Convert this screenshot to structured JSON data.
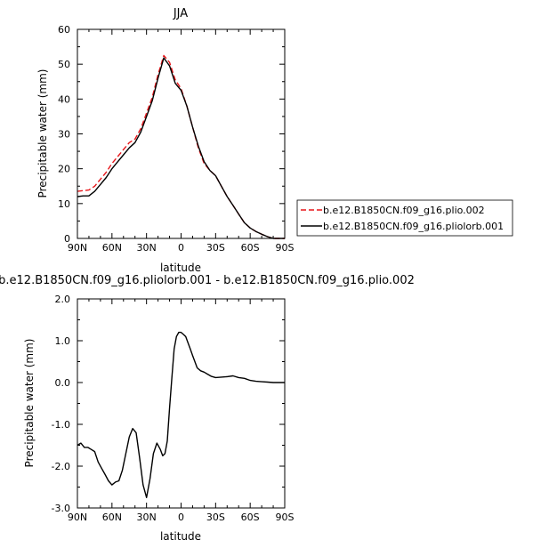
{
  "chart_data": [
    {
      "type": "line",
      "title": "JJA",
      "xlabel": "latitude",
      "ylabel": "Precipitable water (mm)",
      "xlim": [
        90,
        -90
      ],
      "ylim": [
        0,
        60
      ],
      "x_ticks": [
        90,
        60,
        30,
        0,
        -30,
        -60,
        -90
      ],
      "x_tick_labels": [
        "90N",
        "60N",
        "30N",
        "0",
        "30S",
        "60S",
        "90S"
      ],
      "y_ticks": [
        0,
        10,
        20,
        30,
        40,
        50,
        60
      ],
      "y_tick_labels": [
        "0",
        "10",
        "20",
        "30",
        "40",
        "50",
        "60"
      ],
      "legend_position": "right, outside plot",
      "series": [
        {
          "name": "b.e12.B1850CN.f09_g16.plio.002",
          "color": "#e8161a",
          "style": "dashed",
          "x": [
            90,
            85,
            80,
            75,
            70,
            65,
            60,
            55,
            50,
            45,
            40,
            35,
            30,
            25,
            20,
            15,
            10,
            5,
            0,
            -5,
            -10,
            -15,
            -20,
            -25,
            -30,
            -35,
            -40,
            -45,
            -50,
            -55,
            -60,
            -65,
            -70,
            -75,
            -80,
            -85,
            -90
          ],
          "y": [
            13.5,
            13.7,
            13.9,
            15.0,
            17.0,
            19.0,
            21.5,
            23.5,
            25.5,
            27.5,
            28.5,
            31.5,
            36.0,
            40.5,
            47.0,
            52.5,
            50.5,
            45.5,
            43.0,
            38.0,
            32.0,
            26.0,
            21.5,
            19.5,
            18.0,
            15.0,
            12.0,
            9.5,
            7.0,
            4.5,
            3.0,
            2.0,
            1.2,
            0.5,
            0.0,
            0.0,
            0.0
          ]
        },
        {
          "name": "b.e12.B1850CN.f09_g16.pliolorb.001",
          "color": "#000000",
          "style": "solid",
          "x": [
            90,
            85,
            80,
            75,
            70,
            65,
            60,
            55,
            50,
            45,
            40,
            35,
            30,
            25,
            20,
            15,
            10,
            5,
            0,
            -5,
            -10,
            -15,
            -20,
            -25,
            -30,
            -35,
            -40,
            -45,
            -50,
            -55,
            -60,
            -65,
            -70,
            -75,
            -80,
            -85,
            -90
          ],
          "y": [
            12.0,
            12.2,
            12.2,
            13.5,
            15.5,
            17.5,
            20.0,
            22.0,
            24.0,
            26.0,
            27.5,
            30.5,
            35.0,
            39.5,
            46.0,
            51.8,
            49.5,
            44.5,
            42.5,
            38.0,
            32.0,
            26.5,
            22.0,
            19.5,
            18.0,
            15.0,
            12.0,
            9.5,
            7.0,
            4.5,
            3.0,
            2.0,
            1.2,
            0.5,
            0.0,
            0.0,
            0.0
          ]
        }
      ]
    },
    {
      "type": "line",
      "title": "b.e12.B1850CN.f09_g16.pliolorb.001 - b.e12.B1850CN.f09_g16.plio.002",
      "xlabel": "latitude",
      "ylabel": "Precipitable water (mm)",
      "xlim": [
        90,
        -90
      ],
      "ylim": [
        -3.0,
        2.0
      ],
      "x_ticks": [
        90,
        60,
        30,
        0,
        -30,
        -60,
        -90
      ],
      "x_tick_labels": [
        "90N",
        "60N",
        "30N",
        "0",
        "30S",
        "60S",
        "90S"
      ],
      "y_ticks": [
        -3.0,
        -2.0,
        -1.0,
        0.0,
        1.0,
        2.0
      ],
      "y_tick_labels": [
        "-3.0",
        "-2.0",
        "-1.0",
        "0.0",
        "1.0",
        "2.0"
      ],
      "series": [
        {
          "color": "#000000",
          "style": "solid",
          "x": [
            90,
            87,
            84,
            81,
            78,
            75,
            72,
            69,
            66,
            63,
            60,
            57,
            54,
            51,
            48,
            45,
            42,
            39,
            36,
            33,
            30,
            27,
            24,
            21,
            18,
            16,
            14,
            12,
            10,
            8,
            6,
            4,
            2,
            0,
            -2,
            -4,
            -6,
            -8,
            -10,
            -12,
            -14,
            -17,
            -20,
            -23,
            -26,
            -30,
            -35,
            -40,
            -45,
            -50,
            -55,
            -60,
            -65,
            -70,
            -75,
            -80,
            -85,
            -90
          ],
          "y": [
            -1.5,
            -1.45,
            -1.55,
            -1.55,
            -1.6,
            -1.65,
            -1.9,
            -2.05,
            -2.2,
            -2.35,
            -2.45,
            -2.38,
            -2.35,
            -2.1,
            -1.7,
            -1.3,
            -1.1,
            -1.2,
            -1.8,
            -2.45,
            -2.75,
            -2.3,
            -1.7,
            -1.45,
            -1.6,
            -1.75,
            -1.7,
            -1.4,
            -0.6,
            0.1,
            0.8,
            1.1,
            1.2,
            1.2,
            1.15,
            1.1,
            0.95,
            0.8,
            0.65,
            0.5,
            0.35,
            0.28,
            0.25,
            0.2,
            0.15,
            0.12,
            0.13,
            0.14,
            0.16,
            0.12,
            0.1,
            0.05,
            0.03,
            0.02,
            0.01,
            0.0,
            0.0,
            0.0
          ]
        }
      ]
    }
  ]
}
